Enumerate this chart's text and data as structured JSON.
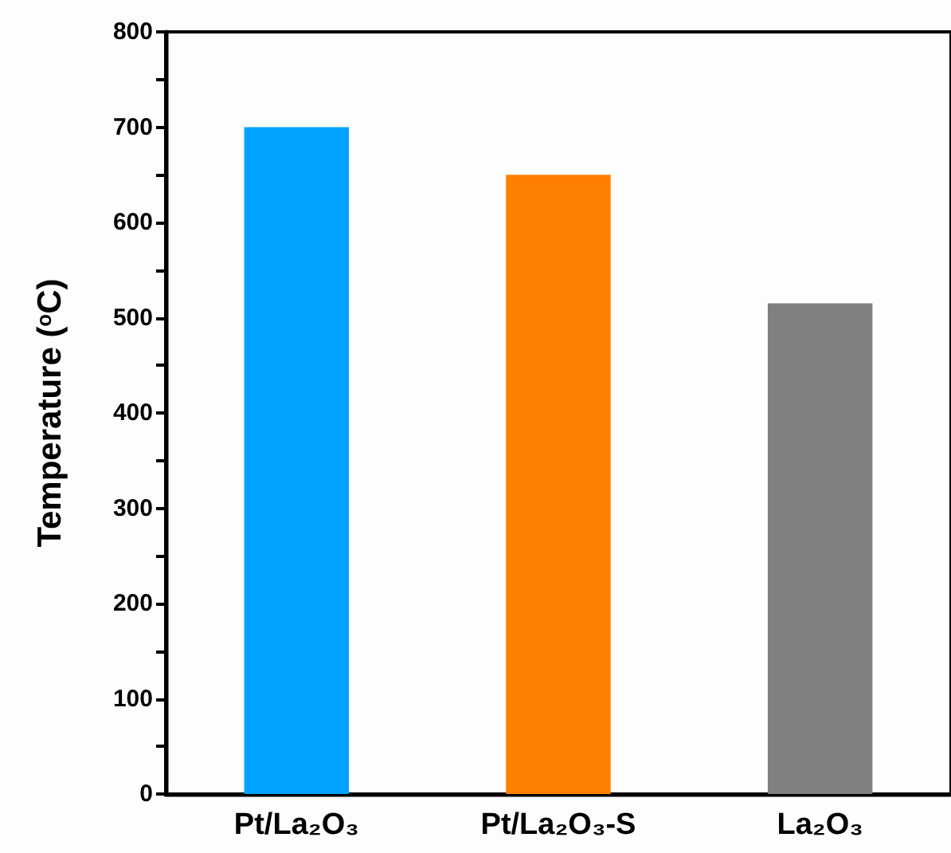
{
  "chart_data": {
    "type": "bar",
    "ylabel": "Temperature ($^{o}$C)",
    "categories": [
      "Pt/La₂O₃",
      "Pt/La₂O₃-S",
      "La₂O₃"
    ],
    "values": [
      700,
      650,
      515
    ],
    "colors": [
      "#00a2ff",
      "#ff8000",
      "#808080"
    ],
    "ylim": [
      0,
      800
    ],
    "yticks": [
      0,
      {
        "value": 50,
        "label": null
      },
      100,
      {
        "value": 150,
        "label": null
      },
      200,
      {
        "value": 250,
        "label": null
      },
      300,
      {
        "value": 350,
        "label": null
      },
      400,
      {
        "value": 450,
        "label": null
      },
      500,
      {
        "value": 550,
        "label": null
      },
      600,
      {
        "value": 650,
        "label": null
      },
      700,
      {
        "value": 750,
        "label": null
      },
      800
    ],
    "grid": false
  }
}
